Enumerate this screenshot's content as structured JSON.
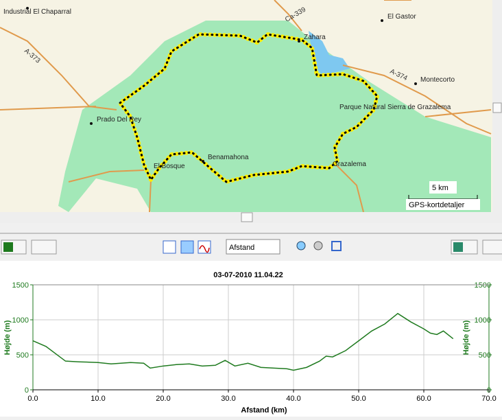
{
  "map": {
    "places": [
      "Industrial El Chaparral",
      "El Gastor",
      "Zahara",
      "Montecorto",
      "Parque Natural Sierra de Grazalema",
      "Prado Del Rey",
      "Benamahona",
      "El Bosque",
      "Grazalema"
    ],
    "roads": [
      "A-373",
      "Ca-339",
      "A-374"
    ],
    "scale": "5 km",
    "attribution": "GPS-kortdetaljer"
  },
  "toolbar": {
    "axis_select": "Afstand"
  },
  "chart_data": {
    "type": "line",
    "title": "03-07-2010 11.04.22",
    "xlabel": "Afstand (km)",
    "ylabel": "Højde (m)",
    "y2label": "Højde (m)",
    "x": [
      0,
      2,
      4,
      5,
      7,
      10,
      12,
      15,
      17,
      18,
      20,
      22,
      24,
      26,
      28,
      29.5,
      31,
      33,
      35,
      37,
      39,
      40,
      42,
      44,
      45,
      46,
      48,
      50,
      52,
      54,
      56,
      58,
      60,
      61,
      62,
      63,
      64.5
    ],
    "series": [
      {
        "name": "Højde",
        "color": "#1e7a1e",
        "values": [
          700,
          620,
          480,
          410,
          400,
          390,
          370,
          390,
          380,
          310,
          340,
          360,
          370,
          340,
          350,
          420,
          340,
          380,
          320,
          310,
          300,
          280,
          320,
          410,
          480,
          470,
          560,
          700,
          840,
          940,
          1090,
          970,
          870,
          810,
          790,
          840,
          730
        ]
      }
    ],
    "xlim": [
      0,
      70
    ],
    "ylim": [
      0,
      1500
    ],
    "y2lim": [
      0,
      1500
    ],
    "xticks": [
      {
        "value": 0,
        "label": "0.0"
      },
      {
        "value": 10,
        "label": "10.0"
      },
      {
        "value": 20,
        "label": "20.0"
      },
      {
        "value": 30,
        "label": "30.0"
      },
      {
        "value": 40,
        "label": "40.0"
      },
      {
        "value": 50,
        "label": "50.0"
      },
      {
        "value": 60,
        "label": "60.0"
      },
      {
        "value": 70,
        "label": "70.0"
      }
    ],
    "yticks": [
      0,
      500,
      1000,
      1500
    ],
    "y2ticks": [
      0,
      500,
      1000,
      1500
    ],
    "grid": true
  }
}
